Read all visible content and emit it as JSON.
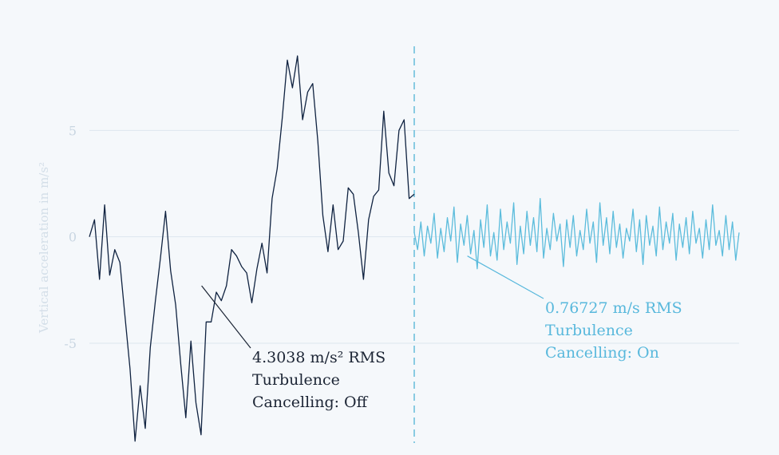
{
  "chart_data": {
    "type": "line",
    "title": "",
    "xlabel": "",
    "ylabel": "Vertical acceleration in m/s²",
    "ylim": [
      -9.5,
      10
    ],
    "xlim": [
      0,
      1100
    ],
    "yticks": [
      {
        "value": 5,
        "label": "5"
      },
      {
        "value": 0,
        "label": "0"
      },
      {
        "value": -5,
        "label": "-5"
      }
    ],
    "grid": true,
    "legend": "none",
    "divider_x": 550,
    "series": [
      {
        "color": "#0f2240",
        "x_range": [
          0,
          550
        ],
        "values": [
          0.0,
          0.8,
          -2.0,
          1.5,
          -1.8,
          -0.6,
          -1.2,
          -3.7,
          -6.2,
          -9.6,
          -7.0,
          -9.0,
          -5.2,
          -3.0,
          -1.0,
          1.2,
          -1.6,
          -3.2,
          -6.0,
          -8.5,
          -4.9,
          -7.8,
          -9.3,
          -4.0,
          -4.0,
          -2.6,
          -3.0,
          -2.3,
          -0.6,
          -0.9,
          -1.4,
          -1.7,
          -3.1,
          -1.5,
          -0.3,
          -1.7,
          1.8,
          3.2,
          5.6,
          8.3,
          7.0,
          8.5,
          5.5,
          6.8,
          7.2,
          4.5,
          1.0,
          -0.7,
          1.5,
          -0.6,
          -0.2,
          2.3,
          2.0,
          0.2,
          -2.0,
          0.8,
          1.9,
          2.2,
          5.9,
          3.0,
          2.4,
          5.0,
          5.5,
          1.8,
          2.0
        ]
      },
      {
        "color": "#5bbcdc",
        "x_range": [
          550,
          1100
        ],
        "values": [
          0.2,
          -0.6,
          0.7,
          -0.9,
          0.5,
          -0.3,
          1.1,
          -1.0,
          0.4,
          -0.7,
          0.9,
          -0.2,
          1.4,
          -1.2,
          0.6,
          -0.4,
          1.0,
          -0.8,
          0.3,
          -1.5,
          0.8,
          -0.5,
          1.5,
          -0.9,
          0.2,
          -1.1,
          1.3,
          -0.6,
          0.7,
          -0.3,
          1.6,
          -1.3,
          0.5,
          -0.8,
          1.2,
          -0.4,
          0.9,
          -0.7,
          1.8,
          -1.0,
          0.4,
          -0.6,
          1.1,
          -0.2,
          0.6,
          -1.4,
          0.8,
          -0.5,
          1.0,
          -0.9,
          0.3,
          -0.6,
          1.3,
          -0.3,
          0.7,
          -1.2,
          1.6,
          -0.4,
          0.9,
          -0.8,
          1.2,
          -0.5,
          0.6,
          -1.0,
          0.4,
          -0.2,
          1.3,
          -0.7,
          0.8,
          -1.3,
          1.0,
          -0.4,
          0.5,
          -0.9,
          1.4,
          -0.6,
          0.7,
          -0.3,
          1.1,
          -1.1,
          0.6,
          -0.5,
          0.9,
          -0.8,
          1.2,
          -0.3,
          0.4,
          -1.0,
          0.8,
          -0.6,
          1.5,
          -0.4,
          0.3,
          -0.9,
          1.0,
          -0.6,
          0.7,
          -1.1,
          0.2
        ]
      }
    ],
    "annotations": [
      {
        "lines": [
          "4.3038 m/s² RMS",
          "Turbulence",
          "Cancelling: Off"
        ],
        "color": "#1c2535",
        "x": 190,
        "y": -2.3
      },
      {
        "lines": [
          "0.76727 m/s RMS",
          "Turbulence",
          "Cancelling: On"
        ],
        "color": "#58b8dc",
        "x": 640,
        "y": -0.9
      }
    ]
  },
  "colors": {
    "background": "#f5f8fb",
    "grid": "#dde6ee",
    "divider": "#4fb3d5"
  }
}
